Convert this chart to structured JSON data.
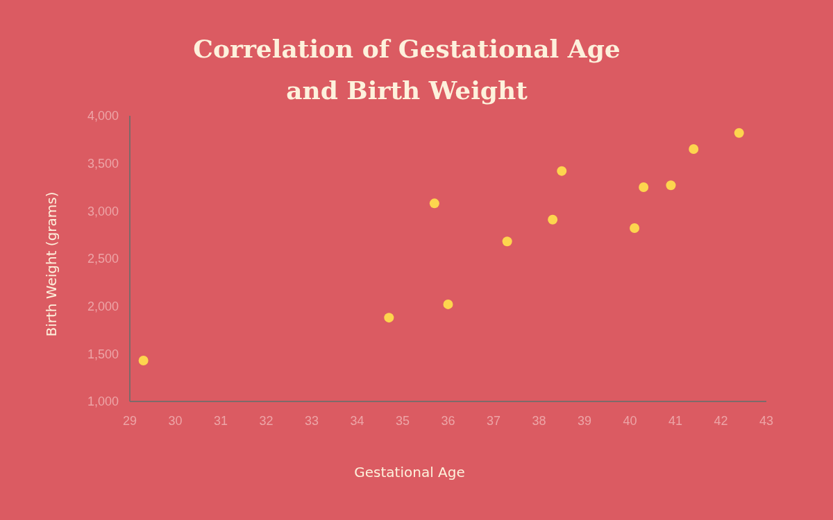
{
  "chart_data": {
    "type": "scatter",
    "title": "Correlation of Gestational Age and Birth Weight",
    "xlabel": "Gestational Age",
    "ylabel": "Birth Weight (grams)",
    "x": [
      29.3,
      34.7,
      35.7,
      36.0,
      37.3,
      38.3,
      38.5,
      40.1,
      40.3,
      40.9,
      41.4,
      42.4
    ],
    "series": [
      {
        "color": "#fdd54e",
        "values": [
          1430,
          1880,
          3080,
          2020,
          2680,
          2910,
          3420,
          2820,
          3250,
          3270,
          3650,
          3820
        ]
      }
    ],
    "xlim": [
      29,
      43
    ],
    "xticks": [
      29,
      30,
      31,
      32,
      33,
      34,
      35,
      36,
      37,
      38,
      39,
      40,
      41,
      42,
      43
    ],
    "ylim": [
      1000,
      4000
    ],
    "yticks": [
      {
        "value": 1000,
        "label": "1,000"
      },
      {
        "value": 1500,
        "label": "1,500"
      },
      {
        "value": 2000,
        "label": "2,000"
      },
      {
        "value": 2500,
        "label": "2,500"
      },
      {
        "value": 3000,
        "label": "3,000"
      },
      {
        "value": 3500,
        "label": "3,500"
      },
      {
        "value": 4000,
        "label": "4,000"
      }
    ],
    "grid": false,
    "marker": "circle"
  }
}
